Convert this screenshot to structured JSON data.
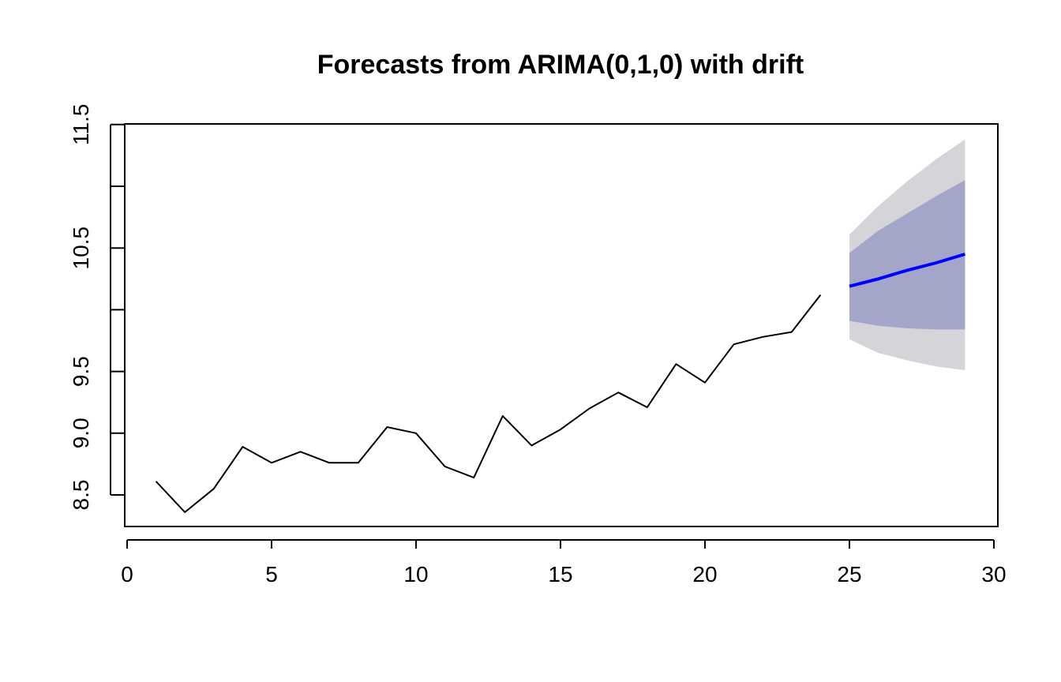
{
  "chart_data": {
    "type": "line",
    "title": "Forecasts from ARIMA(0,1,0) with drift",
    "xlabel": "",
    "ylabel": "",
    "xlim": [
      0,
      30
    ],
    "ylim": [
      8.3,
      11.5
    ],
    "x_ticks": [
      0,
      5,
      10,
      15,
      20,
      25,
      30
    ],
    "x_tick_labels": [
      "0",
      "5",
      "10",
      "15",
      "20",
      "25",
      "30"
    ],
    "y_ticks": [
      8.5,
      9.0,
      9.5,
      10.0,
      10.5,
      11.0,
      11.5
    ],
    "y_tick_labels": [
      "8.5",
      "9.0",
      "9.5",
      "",
      "10.5",
      "",
      "11.5"
    ],
    "grid": false,
    "legend": "none",
    "series": [
      {
        "x": [
          1,
          2,
          3,
          4,
          5,
          6,
          7,
          8,
          9,
          10,
          11,
          12,
          13,
          14,
          15,
          16,
          17,
          18,
          19,
          20,
          21,
          22,
          23,
          24
        ],
        "values": [
          8.61,
          8.36,
          8.55,
          8.89,
          8.76,
          8.85,
          8.76,
          8.76,
          9.05,
          9.0,
          8.73,
          8.64,
          9.14,
          8.9,
          9.03,
          9.2,
          9.33,
          9.21,
          9.56,
          9.41,
          9.72,
          9.78,
          9.82,
          10.12
        ],
        "color": "#000000"
      },
      {
        "x": [
          25,
          26,
          27,
          28,
          29
        ],
        "values": [
          10.19,
          10.25,
          10.32,
          10.38,
          10.45
        ],
        "color": "#0000ff"
      }
    ],
    "bands": [
      {
        "x": [
          25,
          26,
          27,
          28,
          29
        ],
        "lower": [
          9.76,
          9.65,
          9.59,
          9.54,
          9.51
        ],
        "upper": [
          10.61,
          10.84,
          11.04,
          11.22,
          11.38
        ],
        "color": "#d4d4d9"
      },
      {
        "x": [
          25,
          26,
          27,
          28,
          29
        ],
        "lower": [
          9.91,
          9.87,
          9.85,
          9.84,
          9.84
        ],
        "upper": [
          10.46,
          10.64,
          10.78,
          10.92,
          11.05
        ],
        "color": "#a3a6c8"
      }
    ]
  }
}
